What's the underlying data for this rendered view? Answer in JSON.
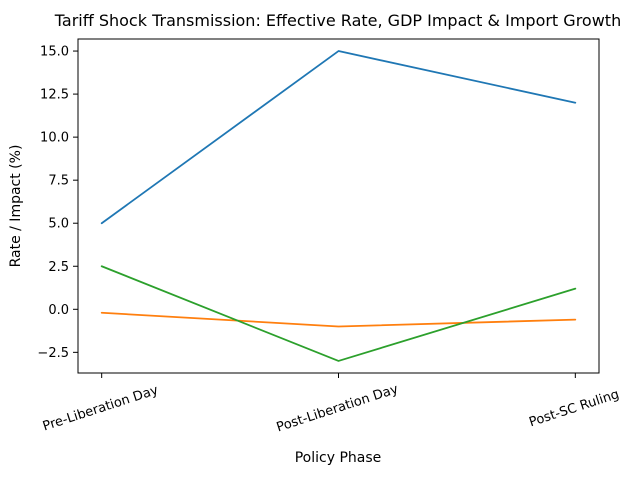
{
  "chart_data": {
    "type": "line",
    "title": "Tariff Shock Transmission: Effective Rate, GDP Impact & Import Growth",
    "xlabel": "Policy Phase",
    "ylabel": "Rate / Impact (%)",
    "categories": [
      "Pre-Liberation Day",
      "Post-Liberation Day",
      "Post-SC Ruling"
    ],
    "series": [
      {
        "name": "Effective Rate",
        "color": "#1f77b4",
        "values": [
          5.0,
          15.0,
          12.0
        ]
      },
      {
        "name": "GDP Impact",
        "color": "#ff7f0e",
        "values": [
          -0.2,
          -1.0,
          -0.6
        ]
      },
      {
        "name": "Import Growth",
        "color": "#2ca02c",
        "values": [
          2.5,
          -3.0,
          1.2
        ]
      }
    ],
    "yticks": [
      -2.5,
      0.0,
      2.5,
      5.0,
      7.5,
      10.0,
      12.5,
      15.0
    ],
    "ylim": [
      -3.7,
      15.7
    ],
    "xlim": [
      -0.1,
      2.1
    ],
    "x_tick_rotation_deg": 18,
    "grid": false,
    "legend": "none",
    "colors": {
      "background": "#ffffff",
      "axis": "#000000",
      "text": "#000000"
    }
  }
}
